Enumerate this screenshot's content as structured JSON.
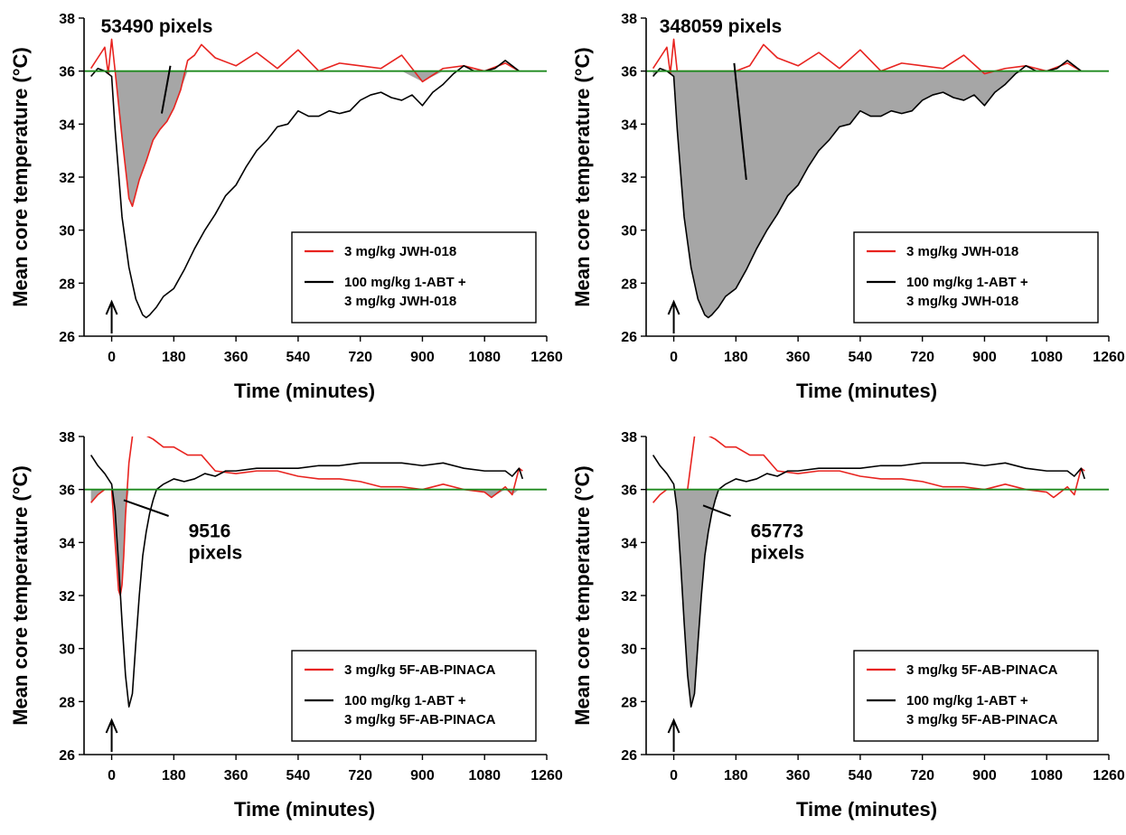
{
  "chart_data": [
    {
      "type": "line",
      "panel": "top-left",
      "xlabel": "Time (minutes)",
      "ylabel": "Mean core temperature (°C)",
      "xlim": [
        -80,
        1260
      ],
      "ylim": [
        26,
        38
      ],
      "xticks": [
        0,
        180,
        360,
        540,
        720,
        900,
        1080,
        1260
      ],
      "yticks": [
        26,
        28,
        30,
        32,
        34,
        36,
        38
      ],
      "baseline": 36,
      "shaded_series": 0,
      "annotation": {
        "lines": [
          "53490 pixels"
        ],
        "pointer_from": [
          170,
          36.2
        ],
        "pointer_to": [
          145,
          34.4
        ]
      },
      "series": [
        {
          "name": "3 mg/kg JWH-018",
          "color": "#e8231f",
          "x": [
            -60,
            -40,
            -20,
            -10,
            0,
            10,
            30,
            50,
            60,
            80,
            100,
            120,
            140,
            160,
            180,
            200,
            220,
            240,
            260,
            300,
            360,
            420,
            480,
            540,
            600,
            660,
            720,
            780,
            840,
            900,
            960,
            1020,
            1080,
            1140,
            1180
          ],
          "y": [
            36.1,
            36.5,
            36.9,
            35.9,
            37.2,
            36.0,
            33.5,
            31.2,
            30.9,
            31.9,
            32.6,
            33.4,
            33.8,
            34.1,
            34.6,
            35.3,
            36.4,
            36.6,
            37.0,
            36.5,
            36.2,
            36.7,
            36.1,
            36.8,
            36.0,
            36.3,
            36.2,
            36.1,
            36.6,
            35.6,
            36.1,
            36.2,
            36.0,
            36.3,
            36.0
          ]
        },
        {
          "name": "100 mg/kg 1-ABT + 3 mg/kg JWH-018",
          "color": "#000000",
          "x": [
            -60,
            -40,
            -20,
            0,
            10,
            30,
            50,
            70,
            90,
            100,
            110,
            130,
            150,
            180,
            210,
            240,
            270,
            300,
            330,
            360,
            390,
            420,
            450,
            480,
            510,
            540,
            570,
            600,
            630,
            660,
            690,
            720,
            750,
            780,
            810,
            840,
            870,
            900,
            930,
            960,
            990,
            1020,
            1050,
            1080,
            1110,
            1140,
            1180
          ],
          "y": [
            35.8,
            36.1,
            36.0,
            35.8,
            33.8,
            30.5,
            28.6,
            27.4,
            26.8,
            26.7,
            26.8,
            27.1,
            27.5,
            27.8,
            28.5,
            29.3,
            30.0,
            30.6,
            31.3,
            31.7,
            32.4,
            33.0,
            33.4,
            33.9,
            34.0,
            34.5,
            34.3,
            34.3,
            34.5,
            34.4,
            34.5,
            34.9,
            35.1,
            35.2,
            35.0,
            34.9,
            35.1,
            34.7,
            35.2,
            35.5,
            35.9,
            36.2,
            36.0,
            36.0,
            36.1,
            36.4,
            36.0
          ]
        }
      ],
      "legend": {
        "placement": "bottom-right",
        "entries": [
          {
            "color": "#e8231f",
            "lines": [
              "3 mg/kg JWH-018"
            ]
          },
          {
            "color": "#000000",
            "lines": [
              "100 mg/kg 1-ABT +",
              "3 mg/kg JWH-018"
            ]
          }
        ]
      }
    },
    {
      "type": "line",
      "panel": "top-right",
      "xlabel": "Time (minutes)",
      "ylabel": "Mean core temperature (°C)",
      "xlim": [
        -80,
        1260
      ],
      "ylim": [
        26,
        38
      ],
      "xticks": [
        0,
        180,
        360,
        540,
        720,
        900,
        1080,
        1260
      ],
      "yticks": [
        26,
        28,
        30,
        32,
        34,
        36,
        38
      ],
      "baseline": 36,
      "shaded_series": 1,
      "annotation": {
        "lines": [
          "348059 pixels"
        ],
        "pointer_from": [
          175,
          36.3
        ],
        "pointer_to": [
          210,
          31.9
        ]
      },
      "series": [
        {
          "name": "3 mg/kg JWH-018",
          "color": "#e8231f",
          "x": [
            -60,
            -40,
            -20,
            -10,
            0,
            10,
            20,
            40,
            60,
            80,
            100,
            140,
            180,
            220,
            260,
            300,
            360,
            420,
            480,
            540,
            600,
            660,
            720,
            780,
            840,
            900,
            960,
            1020,
            1080,
            1140,
            1180
          ],
          "y": [
            36.1,
            36.5,
            36.9,
            35.9,
            37.2,
            36.0,
            36.0,
            36.0,
            36.0,
            36.0,
            36.0,
            36.0,
            36.0,
            36.2,
            37.0,
            36.5,
            36.2,
            36.7,
            36.1,
            36.8,
            36.0,
            36.3,
            36.2,
            36.1,
            36.6,
            35.9,
            36.1,
            36.2,
            36.0,
            36.3,
            36.0
          ]
        },
        {
          "name": "100 mg/kg 1-ABT + 3 mg/kg JWH-018",
          "color": "#000000",
          "x": [
            -60,
            -40,
            -20,
            0,
            10,
            30,
            50,
            70,
            90,
            100,
            110,
            130,
            150,
            180,
            210,
            240,
            270,
            300,
            330,
            360,
            390,
            420,
            450,
            480,
            510,
            540,
            570,
            600,
            630,
            660,
            690,
            720,
            750,
            780,
            810,
            840,
            870,
            900,
            930,
            960,
            990,
            1020,
            1050,
            1080,
            1110,
            1140,
            1180
          ],
          "y": [
            35.8,
            36.1,
            36.0,
            35.8,
            33.8,
            30.5,
            28.6,
            27.4,
            26.8,
            26.7,
            26.8,
            27.1,
            27.5,
            27.8,
            28.5,
            29.3,
            30.0,
            30.6,
            31.3,
            31.7,
            32.4,
            33.0,
            33.4,
            33.9,
            34.0,
            34.5,
            34.3,
            34.3,
            34.5,
            34.4,
            34.5,
            34.9,
            35.1,
            35.2,
            35.0,
            34.9,
            35.1,
            34.7,
            35.2,
            35.5,
            35.9,
            36.2,
            36.0,
            36.0,
            36.1,
            36.4,
            36.0
          ]
        }
      ],
      "legend": {
        "placement": "bottom-right",
        "entries": [
          {
            "color": "#e8231f",
            "lines": [
              "3 mg/kg JWH-018"
            ]
          },
          {
            "color": "#000000",
            "lines": [
              "100 mg/kg 1-ABT +",
              "3 mg/kg JWH-018"
            ]
          }
        ]
      }
    },
    {
      "type": "line",
      "panel": "bottom-left",
      "xlabel": "Time (minutes)",
      "ylabel": "Mean core temperature (°C)",
      "xlim": [
        -80,
        1260
      ],
      "ylim": [
        26,
        38
      ],
      "xticks": [
        0,
        180,
        360,
        540,
        720,
        900,
        1080,
        1260
      ],
      "yticks": [
        26,
        28,
        30,
        32,
        34,
        36,
        38
      ],
      "baseline": 36,
      "shaded_series": 0,
      "annotation": {
        "lines": [
          "9516",
          "pixels"
        ],
        "pointer_from": [
          165,
          35.0
        ],
        "pointer_to": [
          35,
          35.6
        ]
      },
      "series": [
        {
          "name": "3 mg/kg 5F-AB-PINACA",
          "color": "#e8231f",
          "x": [
            -60,
            -40,
            -20,
            0,
            10,
            20,
            25,
            30,
            35,
            40,
            50,
            60,
            70,
            90,
            120,
            150,
            180,
            220,
            260,
            300,
            360,
            420,
            480,
            540,
            600,
            660,
            720,
            780,
            840,
            900,
            960,
            1020,
            1080,
            1100,
            1140,
            1160,
            1180,
            1190
          ],
          "y": [
            35.5,
            35.8,
            36.0,
            36.0,
            34.0,
            32.2,
            32.0,
            32.4,
            33.5,
            35.0,
            37.0,
            38.0,
            38.3,
            38.1,
            37.9,
            37.6,
            37.6,
            37.3,
            37.3,
            36.7,
            36.6,
            36.7,
            36.7,
            36.5,
            36.4,
            36.4,
            36.3,
            36.1,
            36.1,
            36.0,
            36.2,
            36.0,
            35.9,
            35.7,
            36.1,
            35.8,
            36.8,
            36.7
          ]
        },
        {
          "name": "100 mg/kg 1-ABT + 3 mg/kg 5F-AB-PINACA",
          "color": "#000000",
          "x": [
            -60,
            -40,
            -20,
            0,
            10,
            20,
            30,
            40,
            50,
            60,
            70,
            80,
            90,
            100,
            110,
            120,
            130,
            150,
            180,
            210,
            240,
            270,
            300,
            330,
            360,
            420,
            480,
            540,
            600,
            660,
            720,
            780,
            840,
            900,
            960,
            1020,
            1080,
            1140,
            1160,
            1180,
            1190
          ],
          "y": [
            37.3,
            36.9,
            36.6,
            36.2,
            35.2,
            33.2,
            31.0,
            29.0,
            27.8,
            28.3,
            30.2,
            32.0,
            33.5,
            34.4,
            35.1,
            35.6,
            36.0,
            36.2,
            36.4,
            36.3,
            36.4,
            36.6,
            36.5,
            36.7,
            36.7,
            36.8,
            36.8,
            36.8,
            36.9,
            36.9,
            37.0,
            37.0,
            37.0,
            36.9,
            37.0,
            36.8,
            36.7,
            36.7,
            36.5,
            36.8,
            36.4
          ]
        }
      ],
      "legend": {
        "placement": "bottom-right",
        "entries": [
          {
            "color": "#e8231f",
            "lines": [
              "3 mg/kg 5F-AB-PINACA"
            ]
          },
          {
            "color": "#000000",
            "lines": [
              "100 mg/kg 1-ABT +",
              "3 mg/kg 5F-AB-PINACA"
            ]
          }
        ]
      }
    },
    {
      "type": "line",
      "panel": "bottom-right",
      "xlabel": "Time (minutes)",
      "ylabel": "Mean core temperature (°C)",
      "xlim": [
        -80,
        1260
      ],
      "ylim": [
        26,
        38
      ],
      "xticks": [
        0,
        180,
        360,
        540,
        720,
        900,
        1080,
        1260
      ],
      "yticks": [
        26,
        28,
        30,
        32,
        34,
        36,
        38
      ],
      "baseline": 36,
      "shaded_series": 1,
      "annotation": {
        "lines": [
          "65773",
          "pixels"
        ],
        "pointer_from": [
          165,
          35.0
        ],
        "pointer_to": [
          85,
          35.4
        ]
      },
      "series": [
        {
          "name": "3 mg/kg 5F-AB-PINACA",
          "color": "#e8231f",
          "x": [
            -60,
            -40,
            -20,
            0,
            10,
            20,
            30,
            40,
            50,
            60,
            70,
            90,
            120,
            150,
            180,
            220,
            260,
            300,
            360,
            420,
            480,
            540,
            600,
            660,
            720,
            780,
            840,
            900,
            960,
            1020,
            1080,
            1100,
            1140,
            1160,
            1180,
            1190
          ],
          "y": [
            35.5,
            35.8,
            36.0,
            36.0,
            36.0,
            36.0,
            36.0,
            36.0,
            37.0,
            38.0,
            38.3,
            38.1,
            37.9,
            37.6,
            37.6,
            37.3,
            37.3,
            36.7,
            36.6,
            36.7,
            36.7,
            36.5,
            36.4,
            36.4,
            36.3,
            36.1,
            36.1,
            36.0,
            36.2,
            36.0,
            35.9,
            35.7,
            36.1,
            35.8,
            36.8,
            36.7
          ]
        },
        {
          "name": "100 mg/kg 1-ABT + 3 mg/kg 5F-AB-PINACA",
          "color": "#000000",
          "x": [
            -60,
            -40,
            -20,
            0,
            10,
            20,
            30,
            40,
            50,
            60,
            70,
            80,
            90,
            100,
            110,
            120,
            130,
            150,
            180,
            210,
            240,
            270,
            300,
            330,
            360,
            420,
            480,
            540,
            600,
            660,
            720,
            780,
            840,
            900,
            960,
            1020,
            1080,
            1140,
            1160,
            1180,
            1190
          ],
          "y": [
            37.3,
            36.9,
            36.6,
            36.2,
            35.2,
            33.2,
            31.0,
            29.0,
            27.8,
            28.3,
            30.2,
            32.0,
            33.5,
            34.4,
            35.1,
            35.6,
            36.0,
            36.2,
            36.4,
            36.3,
            36.4,
            36.6,
            36.5,
            36.7,
            36.7,
            36.8,
            36.8,
            36.8,
            36.9,
            36.9,
            37.0,
            37.0,
            37.0,
            36.9,
            37.0,
            36.8,
            36.7,
            36.7,
            36.5,
            36.8,
            36.4
          ]
        }
      ],
      "legend": {
        "placement": "bottom-right",
        "entries": [
          {
            "color": "#e8231f",
            "lines": [
              "3 mg/kg 5F-AB-PINACA"
            ]
          },
          {
            "color": "#000000",
            "lines": [
              "100 mg/kg 1-ABT +",
              "3 mg/kg 5F-AB-PINACA"
            ]
          }
        ]
      }
    }
  ],
  "colors": {
    "baseline": "#1f8a1f",
    "shade": "#a6a6a6",
    "axis": "#000000"
  }
}
